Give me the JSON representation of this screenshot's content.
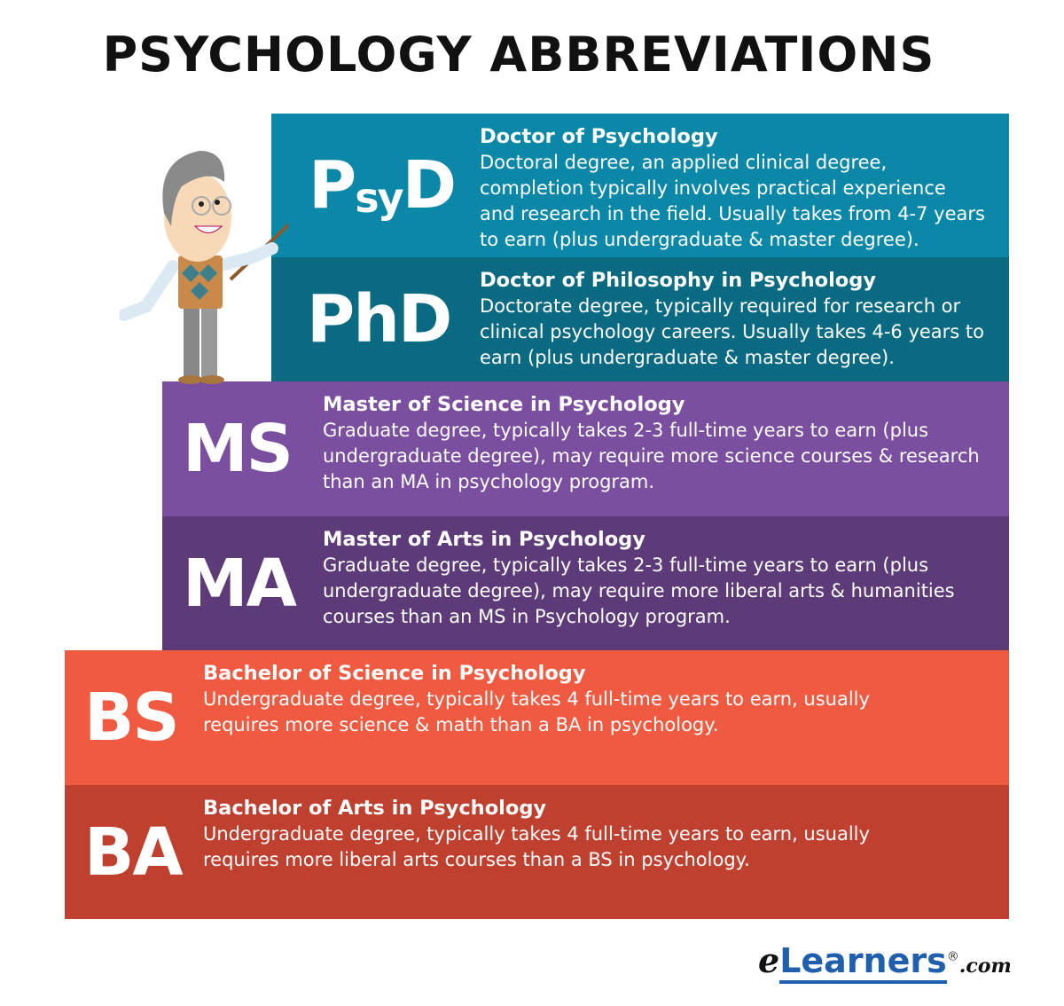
{
  "title": "PSYCHOLOGY ABBREVIATIONS",
  "degrees": [
    {
      "abbr_main": "P",
      "abbr_sub": "sy",
      "abbr_end": "D",
      "abbr": "PsyD",
      "heading": "Doctor of Psychology",
      "lines": [
        "Doctoral degree, an applied clinical degree,",
        "completion typically involves practical experience",
        "and research in the field. Usually takes from 4-7 years",
        "to earn (plus undergraduate & master degree)."
      ],
      "color": "#0b88a7"
    },
    {
      "abbr": "PhD",
      "heading": "Doctor of Philosophy in Psychology",
      "lines": [
        "Doctorate degree, typically required for research or",
        "clinical psychology careers. Usually takes 4-6 years to",
        "earn (plus undergraduate & master degree)."
      ],
      "color": "#0a6a82"
    },
    {
      "abbr": "MS",
      "heading": "Master of Science in Psychology",
      "lines": [
        "Graduate degree, typically takes 2-3 full-time years to earn (plus",
        "undergraduate degree), may require more science courses & research",
        "than an MA in psychology program."
      ],
      "color": "#7a4f9f"
    },
    {
      "abbr": "MA",
      "heading": "Master of Arts in Psychology",
      "lines": [
        "Graduate degree, typically takes 2-3 full-time years to earn (plus",
        "undergraduate degree), may require more liberal arts & humanities",
        "courses than an MS in Psychology program."
      ],
      "color": "#5d3b79"
    },
    {
      "abbr": "BS",
      "heading": "Bachelor of Science in Psychology",
      "lines": [
        "Undergraduate degree, typically takes 4 full-time years to earn, usually",
        "requires more science & math than a BA in psychology."
      ],
      "color": "#f05a40"
    },
    {
      "abbr": "BA",
      "heading": "Bachelor of Arts in Psychology",
      "lines": [
        "Undergraduate degree, typically takes 4 full-time years to earn, usually",
        "requires more liberal arts courses than a BS in psychology."
      ],
      "color": "#c0402f"
    }
  ],
  "logo": {
    "e": "e",
    "main": "Learners",
    "reg": "®",
    "tld": ".com",
    "color": "#1f5fae"
  }
}
